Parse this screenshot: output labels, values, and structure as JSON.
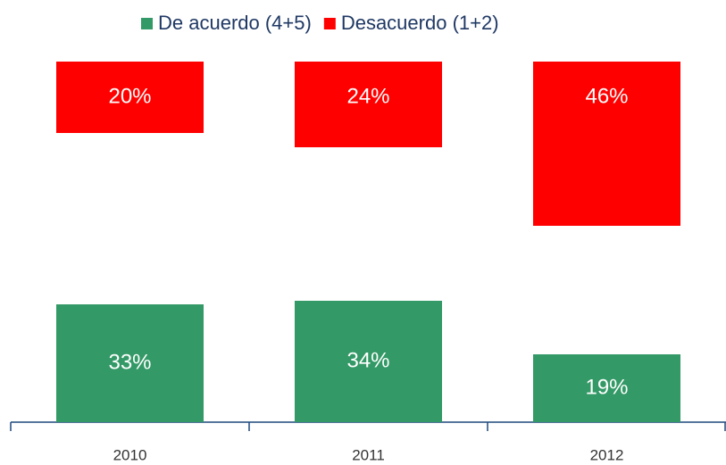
{
  "chart_data": {
    "type": "bar",
    "categories": [
      "2010",
      "2011",
      "2012"
    ],
    "series": [
      {
        "name": "De acuerdo (4+5)",
        "color": "#339966",
        "values": [
          33,
          34,
          19
        ],
        "value_labels": [
          "33%",
          "34%",
          "19%"
        ]
      },
      {
        "name": "Desacuerdo (1+2)",
        "color": "#ff0000",
        "values": [
          20,
          24,
          46
        ],
        "value_labels": [
          "20%",
          "24%",
          "46%"
        ]
      }
    ]
  }
}
